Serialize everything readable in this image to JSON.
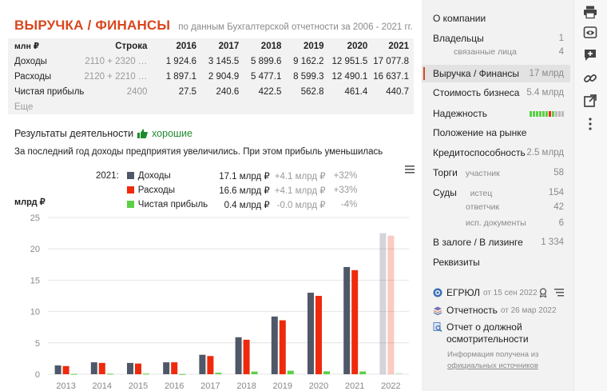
{
  "header": {
    "title": "ВЫРУЧКА / ФИНАНСЫ",
    "subtitle": "по данным Бухгалтерской отчетности за 2006 - 2021 гг."
  },
  "fin_table": {
    "unit_label": "млн ₽",
    "code_header": "Строка",
    "years": [
      "2016",
      "2017",
      "2018",
      "2019",
      "2020",
      "2021"
    ],
    "rows": [
      {
        "label": "Доходы",
        "code": "2110 + 2320 …",
        "values": [
          "1 924.6",
          "3 145.5",
          "5 899.6",
          "9 162.2",
          "12 951.5",
          "17 077.8"
        ]
      },
      {
        "label": "Расходы",
        "code": "2120 + 2210 …",
        "values": [
          "1 897.1",
          "2 904.9",
          "5 477.1",
          "8 599.3",
          "12 490.1",
          "16 637.1"
        ]
      },
      {
        "label": "Чистая прибыль",
        "code": "2400",
        "values": [
          "27.5",
          "240.6",
          "422.5",
          "562.8",
          "461.4",
          "440.7"
        ]
      }
    ],
    "more_label": "Еще"
  },
  "results": {
    "label": "Результаты деятельности",
    "badge": "хорошие",
    "summary": "За последний год доходы предприятия увеличились. При этом прибыль уменьшилась"
  },
  "legend": {
    "year_label": "2021:",
    "rows": [
      {
        "name": "Доходы",
        "color": "#4f5869",
        "value": "17.1 млрд ₽",
        "change": "+4.1 млрд ₽",
        "pct": "+32%"
      },
      {
        "name": "Расходы",
        "color": "#ef2a0c",
        "value": "16.6 млрд ₽",
        "change": "+4.1 млрд ₽",
        "pct": "+33%"
      },
      {
        "name": "Чистая прибыль",
        "color": "#5ccf48",
        "value": "0.4 млрд ₽",
        "change": "-0.0 млрд ₽",
        "pct": "-4%"
      }
    ]
  },
  "chart_data": {
    "type": "bar",
    "ylabel": "млрд ₽",
    "ylim": [
      0,
      25
    ],
    "yticks": [
      "0",
      "5",
      "10",
      "15",
      "20",
      "25"
    ],
    "grid": true,
    "categories": [
      "2013",
      "2014",
      "2015",
      "2016",
      "2017",
      "2018",
      "2019",
      "2020",
      "2021",
      "2022"
    ],
    "series": [
      {
        "name": "Доходы",
        "color": "#4f5869",
        "values": [
          1.4,
          1.9,
          1.8,
          1.9,
          3.1,
          5.9,
          9.2,
          13.0,
          17.1,
          22.5
        ]
      },
      {
        "name": "Расходы",
        "color": "#ef2a0c",
        "values": [
          1.3,
          1.8,
          1.7,
          1.9,
          2.9,
          5.5,
          8.6,
          12.5,
          16.6,
          22.1
        ]
      },
      {
        "name": "Чистая прибыль",
        "color": "#5ccf48",
        "values": [
          0.05,
          0.08,
          0.1,
          0.03,
          0.24,
          0.42,
          0.56,
          0.46,
          0.44,
          0.2
        ]
      }
    ],
    "forecast_category": "2022"
  },
  "sidebar": {
    "items": [
      {
        "label": "О компании",
        "count": ""
      },
      {
        "label": "Владельцы",
        "count": "1"
      },
      {
        "label": "связанные лица",
        "count": "4"
      },
      {
        "label": "Выручка / Финансы",
        "count": "17 млрд"
      },
      {
        "label": "Стоимость бизнеса",
        "count": "5.4 млрд"
      },
      {
        "label": "Надежность",
        "count": ""
      },
      {
        "label": "Положение на рынке",
        "count": ""
      },
      {
        "label": "Кредитоспособность",
        "count": "2.5 млрд"
      },
      {
        "label": "Торги",
        "sub": "участник",
        "count": "58"
      },
      {
        "label": "Суды",
        "sub": "истец",
        "count": "154"
      },
      {
        "label": "",
        "sub": "ответчик",
        "count": "42"
      },
      {
        "label": "",
        "sub": "исп. документы",
        "count": "6"
      },
      {
        "label": "В залоге / В лизинге",
        "count": "1 334"
      },
      {
        "label": "Реквизиты",
        "count": ""
      }
    ],
    "docs": [
      {
        "label": "ЕГРЮЛ",
        "date": "от 15 сен 2022"
      },
      {
        "label": "Отчетность",
        "date": "от 26 мар 2022"
      },
      {
        "label": "Отчет о должной",
        "label2": "осмотрительности"
      }
    ],
    "note1": "Информация получена из",
    "note2": "официальных источников"
  },
  "icons": [
    "print-icon",
    "eye-icon",
    "plus-icon",
    "link-icon",
    "external-link-icon",
    "more-vertical-icon"
  ]
}
